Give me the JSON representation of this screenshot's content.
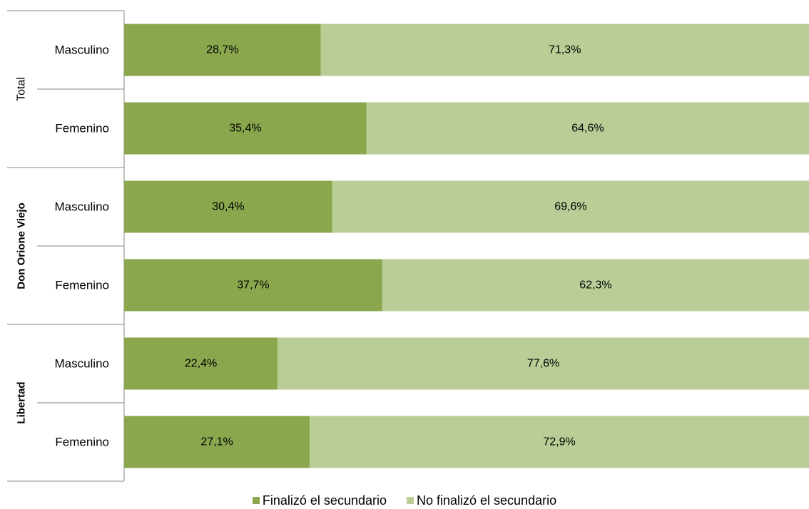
{
  "chart_data": {
    "type": "bar",
    "orientation": "horizontal",
    "stacked": true,
    "percent_stacked": true,
    "title": "",
    "xlabel": "",
    "ylabel": "",
    "xlim": [
      0,
      100
    ],
    "grid": false,
    "legend_position": "bottom",
    "groups": [
      {
        "label": "Total",
        "bold": false,
        "categories": [
          "Masculino",
          "Femenino"
        ]
      },
      {
        "label": "Don Orione Viejo",
        "bold": true,
        "categories": [
          "Masculino",
          "Femenino"
        ]
      },
      {
        "label": "Libertad",
        "bold": true,
        "categories": [
          "Masculino",
          "Femenino"
        ]
      }
    ],
    "series": [
      {
        "name": "Finalizó el secundario",
        "color": "#8ba74e",
        "values": [
          28.7,
          35.4,
          30.4,
          37.7,
          22.4,
          27.1
        ],
        "labels": [
          "28,7%",
          "35,4%",
          "30,4%",
          "37,7%",
          "22,4%",
          "27,1%"
        ]
      },
      {
        "name": "No finalizó el secundario",
        "color": "#bacd96",
        "values": [
          71.3,
          64.6,
          69.6,
          62.3,
          77.6,
          72.9
        ],
        "labels": [
          "71,3%",
          "64,6%",
          "69,6%",
          "62,3%",
          "77,6%",
          "72,9%"
        ]
      }
    ]
  }
}
